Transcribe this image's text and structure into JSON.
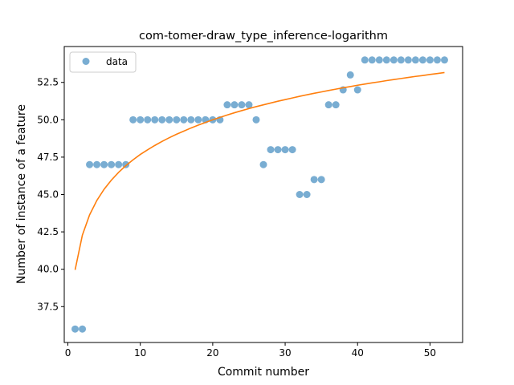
{
  "chart_data": {
    "type": "scatter",
    "title": "com-tomer-draw_type_inference-logarithm",
    "xlabel": "Commit number",
    "ylabel": "Number of instance of a feature",
    "xlim": [
      -0.5,
      54.5
    ],
    "ylim": [
      35.1,
      54.9
    ],
    "x_ticks": [
      0,
      10,
      20,
      30,
      40,
      50
    ],
    "y_ticks": [
      37.5,
      40.0,
      42.5,
      45.0,
      47.5,
      50.0,
      52.5
    ],
    "x_tick_labels": [
      "0",
      "10",
      "20",
      "30",
      "40",
      "50"
    ],
    "y_tick_labels": [
      "37.5",
      "40.0",
      "42.5",
      "45.0",
      "47.5",
      "50.0",
      "52.5"
    ],
    "grid": false,
    "legend": {
      "position": "top-left",
      "entries": [
        "data"
      ]
    },
    "series": [
      {
        "name": "data",
        "kind": "scatter",
        "color": "#1f77b4",
        "x": [
          1,
          2,
          3,
          4,
          5,
          6,
          7,
          8,
          9,
          10,
          11,
          12,
          13,
          14,
          15,
          16,
          17,
          18,
          19,
          20,
          21,
          22,
          23,
          24,
          25,
          26,
          27,
          28,
          29,
          30,
          31,
          32,
          33,
          34,
          35,
          36,
          37,
          38,
          39,
          40,
          41,
          42,
          43,
          44,
          45,
          46,
          47,
          48,
          49,
          50,
          51,
          52
        ],
        "y": [
          36,
          36,
          47,
          47,
          47,
          47,
          47,
          47,
          50,
          50,
          50,
          50,
          50,
          50,
          50,
          50,
          50,
          50,
          50,
          50,
          50,
          51,
          51,
          51,
          51,
          50,
          47,
          48,
          48,
          48,
          48,
          45,
          45,
          46,
          46,
          51,
          51,
          52,
          53,
          52,
          54,
          54,
          54,
          54,
          54,
          54,
          54,
          54,
          54,
          54,
          54,
          54
        ]
      },
      {
        "kind": "line",
        "color": "#ff7f0e",
        "x": [
          1,
          2,
          3,
          4,
          5,
          6,
          7,
          8,
          9,
          10,
          11,
          12,
          13,
          14,
          15,
          16,
          17,
          18,
          19,
          20,
          21,
          22,
          23,
          24,
          25,
          26,
          27,
          28,
          29,
          30,
          31,
          32,
          33,
          34,
          35,
          36,
          37,
          38,
          39,
          40,
          41,
          42,
          43,
          44,
          45,
          46,
          47,
          48,
          49,
          50,
          51,
          52
        ],
        "y": [
          39.96,
          42.28,
          43.64,
          44.6,
          45.35,
          45.96,
          46.48,
          46.93,
          47.32,
          47.68,
          47.99,
          48.28,
          48.55,
          48.8,
          49.03,
          49.24,
          49.45,
          49.64,
          49.82,
          50.0,
          50.16,
          50.32,
          50.47,
          50.61,
          50.75,
          50.88,
          51.0,
          51.12,
          51.24,
          51.35,
          51.46,
          51.57,
          51.67,
          51.77,
          51.86,
          51.96,
          52.05,
          52.14,
          52.22,
          52.31,
          52.39,
          52.47,
          52.54,
          52.62,
          52.69,
          52.76,
          52.83,
          52.9,
          52.96,
          53.03,
          53.09,
          53.16
        ]
      }
    ]
  }
}
